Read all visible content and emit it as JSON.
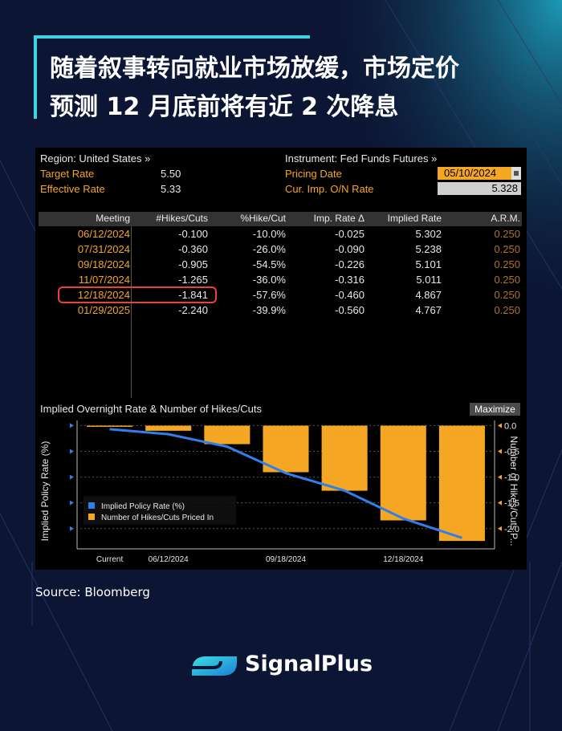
{
  "headline": {
    "line1": "随着叙事转向就业市场放缓，市场定价",
    "line2": "预测 12 月底前将有近 2 次降息"
  },
  "terminal": {
    "region": "Region: United States »",
    "instrument": "Instrument: Fed Funds Futures »",
    "target_rate_label": "Target Rate",
    "target_rate_value": "5.50",
    "effective_rate_label": "Effective Rate",
    "effective_rate_value": "5.33",
    "pricing_date_label": "Pricing Date",
    "pricing_date_value": "05/10/2024",
    "cur_imp_label": "Cur. Imp. O/N Rate",
    "cur_imp_value": "5.328",
    "columns": [
      "Meeting",
      "#Hikes/Cuts",
      "%Hike/Cut",
      "Imp. Rate Δ",
      "Implied Rate",
      "A.R.M."
    ],
    "rows": [
      [
        "06/12/2024",
        "-0.100",
        "-10.0%",
        "-0.025",
        "5.302",
        "0.250"
      ],
      [
        "07/31/2024",
        "-0.360",
        "-26.0%",
        "-0.090",
        "5.238",
        "0.250"
      ],
      [
        "09/18/2024",
        "-0.905",
        "-54.5%",
        "-0.226",
        "5.101",
        "0.250"
      ],
      [
        "11/07/2024",
        "-1.265",
        "-36.0%",
        "-0.316",
        "5.011",
        "0.250"
      ],
      [
        "12/18/2024",
        "-1.841",
        "-57.6%",
        "-0.460",
        "4.867",
        "0.250"
      ],
      [
        "01/29/2025",
        "-2.240",
        "-39.9%",
        "-0.560",
        "4.767",
        "0.250"
      ]
    ]
  },
  "chart": {
    "title": "Implied Overnight Rate & Number of Hikes/Cuts",
    "maximize_label": "Maximize",
    "left_axis_label": "Implied Policy Rate (%)",
    "right_axis_label": "Number of Hikes/Cuts P...",
    "legend_line": "Implied Policy Rate (%)",
    "legend_bar": "Number of Hikes/Cuts Priced In",
    "x_labels": [
      "Current",
      "06/12/2024",
      "09/18/2024",
      "12/18/2024"
    ],
    "right_ticks": [
      "0.0",
      "-0.5",
      "-1.0",
      "-1.5",
      "-2.0"
    ]
  },
  "chart_data": {
    "type": "bar",
    "categories": [
      "Current",
      "06/12/2024",
      "07/31/2024",
      "09/18/2024",
      "11/07/2024",
      "12/18/2024",
      "01/29/2025"
    ],
    "series": [
      {
        "name": "Number of Hikes/Cuts Priced In",
        "values": [
          0.0,
          -0.1,
          -0.36,
          -0.905,
          -1.265,
          -1.841,
          -2.24
        ]
      },
      {
        "name": "Implied Policy Rate (%)",
        "values": [
          5.328,
          5.302,
          5.238,
          5.101,
          5.011,
          4.867,
          4.767
        ]
      }
    ],
    "ylim_right": [
      -2.3,
      0.1
    ],
    "colors": {
      "bars": "#f5a623",
      "line": "#2f80ed"
    }
  },
  "source": "Source: Bloomberg",
  "brand": "SignalPlus"
}
